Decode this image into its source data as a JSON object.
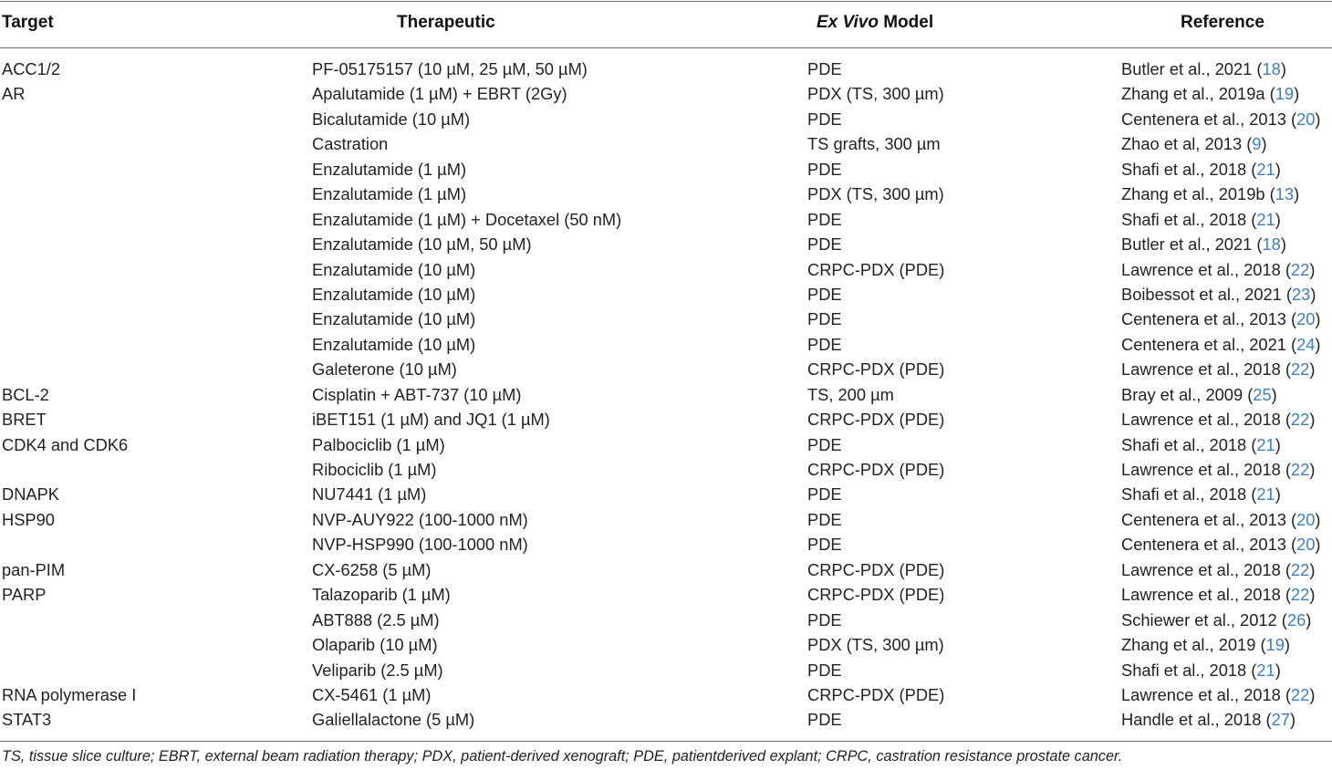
{
  "headers": {
    "target": "Target",
    "therapeutic": "Therapeutic",
    "model_italic": "Ex Vivo",
    "model_rest": " Model",
    "reference": "Reference"
  },
  "rows": [
    {
      "target": "ACC1/2",
      "therapeutic": "PF-05175157 (10 µM, 25 µM, 50 µM)",
      "model": "PDE",
      "ref_text": "Butler et al., 2021 (",
      "ref_num": "18",
      "ref_close": ")"
    },
    {
      "target": "AR",
      "therapeutic": "Apalutamide (1 µM) + EBRT (2Gy)",
      "model": "PDX (TS, 300 µm)",
      "ref_text": "Zhang et al., 2019a (",
      "ref_num": "19",
      "ref_close": ")"
    },
    {
      "target": "",
      "therapeutic": "Bicalutamide (10 µM)",
      "model": "PDE",
      "ref_text": "Centenera et al., 2013 (",
      "ref_num": "20",
      "ref_close": ")"
    },
    {
      "target": "",
      "therapeutic": "Castration",
      "model": "TS grafts, 300 µm",
      "ref_text": "Zhao et al, 2013 (",
      "ref_num": "9",
      "ref_close": ")"
    },
    {
      "target": "",
      "therapeutic": "Enzalutamide (1 µM)",
      "model": "PDE",
      "ref_text": "Shafi et al., 2018 (",
      "ref_num": "21",
      "ref_close": ")"
    },
    {
      "target": "",
      "therapeutic": "Enzalutamide (1 µM)",
      "model": "PDX (TS, 300 µm)",
      "ref_text": "Zhang et al., 2019b (",
      "ref_num": "13",
      "ref_close": ")"
    },
    {
      "target": "",
      "therapeutic": "Enzalutamide (1 µM) + Docetaxel (50 nM)",
      "model": "PDE",
      "ref_text": "Shafi et al., 2018 (",
      "ref_num": "21",
      "ref_close": ")"
    },
    {
      "target": "",
      "therapeutic": "Enzalutamide (10 µM, 50 µM)",
      "model": "PDE",
      "ref_text": "Butler et al., 2021 (",
      "ref_num": "18",
      "ref_close": ")"
    },
    {
      "target": "",
      "therapeutic": "Enzalutamide (10 µM)",
      "model": "CRPC-PDX (PDE)",
      "ref_text": "Lawrence et al., 2018 (",
      "ref_num": "22",
      "ref_close": ")"
    },
    {
      "target": "",
      "therapeutic": "Enzalutamide (10 µM)",
      "model": "PDE",
      "ref_text": "Boibessot et al., 2021 (",
      "ref_num": "23",
      "ref_close": ")"
    },
    {
      "target": "",
      "therapeutic": "Enzalutamide (10 µM)",
      "model": "PDE",
      "ref_text": "Centenera et al., 2013 (",
      "ref_num": "20",
      "ref_close": ")"
    },
    {
      "target": "",
      "therapeutic": "Enzalutamide (10 µM)",
      "model": "PDE",
      "ref_text": "Centenera et al., 2021 (",
      "ref_num": "24",
      "ref_close": ")"
    },
    {
      "target": "",
      "therapeutic": "Galeterone (10 µM)",
      "model": "CRPC-PDX (PDE)",
      "ref_text": "Lawrence et al., 2018 (",
      "ref_num": "22",
      "ref_close": ")"
    },
    {
      "target": "BCL-2",
      "therapeutic": "Cisplatin + ABT-737 (10 µM)",
      "model": "TS, 200 µm",
      "ref_text": "Bray et al., 2009 (",
      "ref_num": "25",
      "ref_close": ")"
    },
    {
      "target": "BRET",
      "therapeutic": "iBET151 (1 µM) and JQ1 (1 µM)",
      "model": "CRPC-PDX (PDE)",
      "ref_text": "Lawrence et al., 2018 (",
      "ref_num": "22",
      "ref_close": ")"
    },
    {
      "target": "CDK4 and CDK6",
      "therapeutic": "Palbociclib (1 µM)",
      "model": "PDE",
      "ref_text": "Shafi et al., 2018 (",
      "ref_num": "21",
      "ref_close": ")"
    },
    {
      "target": "",
      "therapeutic": "Ribociclib (1 µM)",
      "model": "CRPC-PDX (PDE)",
      "ref_text": "Lawrence et al., 2018 (",
      "ref_num": "22",
      "ref_close": ")"
    },
    {
      "target": "DNAPK",
      "therapeutic": "NU7441 (1 µM)",
      "model": "PDE",
      "ref_text": "Shafi et al., 2018 (",
      "ref_num": "21",
      "ref_close": ")"
    },
    {
      "target": "HSP90",
      "therapeutic": "NVP-AUY922 (100-1000 nM)",
      "model": "PDE",
      "ref_text": "Centenera et al., 2013 (",
      "ref_num": "20",
      "ref_close": ")"
    },
    {
      "target": "",
      "therapeutic": "NVP-HSP990 (100-1000 nM)",
      "model": "PDE",
      "ref_text": "Centenera et al., 2013 (",
      "ref_num": "20",
      "ref_close": ")"
    },
    {
      "target": "pan-PIM",
      "therapeutic": "CX-6258 (5 µM)",
      "model": "CRPC-PDX (PDE)",
      "ref_text": "Lawrence et al., 2018 (",
      "ref_num": "22",
      "ref_close": ")"
    },
    {
      "target": "PARP",
      "therapeutic": "Talazoparib (1 µM)",
      "model": "CRPC-PDX (PDE)",
      "ref_text": "Lawrence et al., 2018 (",
      "ref_num": "22",
      "ref_close": ")"
    },
    {
      "target": "",
      "therapeutic": "ABT888 (2.5 µM)",
      "model": "PDE",
      "ref_text": "Schiewer et al., 2012 (",
      "ref_num": "26",
      "ref_close": ")"
    },
    {
      "target": "",
      "therapeutic": "Olaparib (10 µM)",
      "model": "PDX (TS, 300 µm)",
      "ref_text": "Zhang et al., 2019 (",
      "ref_num": "19",
      "ref_close": ")"
    },
    {
      "target": "",
      "therapeutic": "Veliparib (2.5 µM)",
      "model": "PDE",
      "ref_text": "Shafi et al., 2018 (",
      "ref_num": "21",
      "ref_close": ")"
    },
    {
      "target": "RNA polymerase I",
      "therapeutic": "CX-5461 (1 µM)",
      "model": "CRPC-PDX (PDE)",
      "ref_text": "Lawrence et al., 2018 (",
      "ref_num": "22",
      "ref_close": ")"
    },
    {
      "target": "STAT3",
      "therapeutic": "Galiellalactone (5 µM)",
      "model": "PDE",
      "ref_text": "Handle et al., 2018 (",
      "ref_num": "27",
      "ref_close": ")"
    }
  ],
  "footnote": "TS, tissue slice culture; EBRT, external beam radiation therapy; PDX, patient-derived xenograft; PDE, patientderived explant; CRPC, castration resistance prostate cancer.",
  "colors": {
    "link": "#3a7fc4",
    "rule": "#6f6f6f",
    "text": "#222222"
  }
}
